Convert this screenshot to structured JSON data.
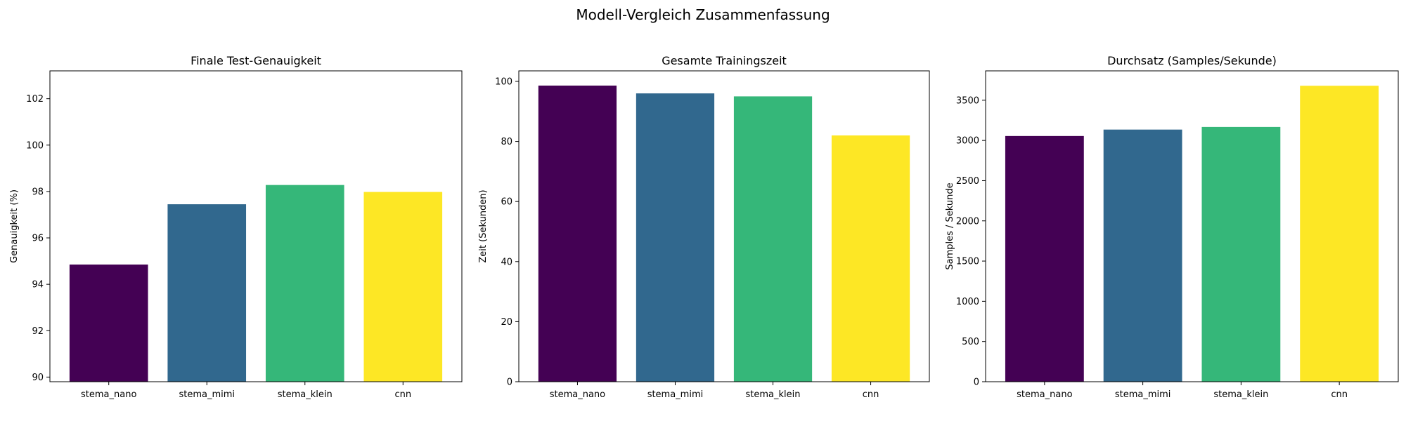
{
  "figure": {
    "suptitle": "Modell-Vergleich Zusammenfassung"
  },
  "colors": {
    "stema_nano": "#440154",
    "stema_mimi": "#31688e",
    "stema_klein": "#35b779",
    "cnn": "#fde725",
    "axes": "#000000",
    "background": "#ffffff"
  },
  "chart_data": [
    {
      "type": "bar",
      "title": "Finale Test-Genauigkeit",
      "xlabel": "",
      "ylabel": "Genauigkeit (%)",
      "categories": [
        "stema_nano",
        "stema_mimi",
        "stema_klein",
        "cnn"
      ],
      "values": [
        94.85,
        97.45,
        98.28,
        97.98
      ],
      "ylim": [
        89.8,
        103.2
      ],
      "yticks": [
        90,
        92,
        94,
        96,
        98,
        100,
        102
      ],
      "grid": false,
      "legend": "none"
    },
    {
      "type": "bar",
      "title": "Gesamte Trainingszeit",
      "xlabel": "",
      "ylabel": "Zeit (Sekunden)",
      "categories": [
        "stema_nano",
        "stema_mimi",
        "stema_klein",
        "cnn"
      ],
      "values": [
        98.6,
        96.0,
        95.0,
        82.0
      ],
      "ylim": [
        0,
        103.5
      ],
      "yticks": [
        0,
        20,
        40,
        60,
        80,
        100
      ],
      "grid": false,
      "legend": "none"
    },
    {
      "type": "bar",
      "title": "Durchsatz (Samples/Sekunde)",
      "xlabel": "",
      "ylabel": "Samples / Sekunde",
      "categories": [
        "stema_nano",
        "stema_mimi",
        "stema_klein",
        "cnn"
      ],
      "values": [
        3055,
        3135,
        3168,
        3680
      ],
      "ylim": [
        0,
        3865
      ],
      "yticks": [
        0,
        500,
        1000,
        1500,
        2000,
        2500,
        3000,
        3500
      ],
      "grid": false,
      "legend": "none"
    }
  ]
}
